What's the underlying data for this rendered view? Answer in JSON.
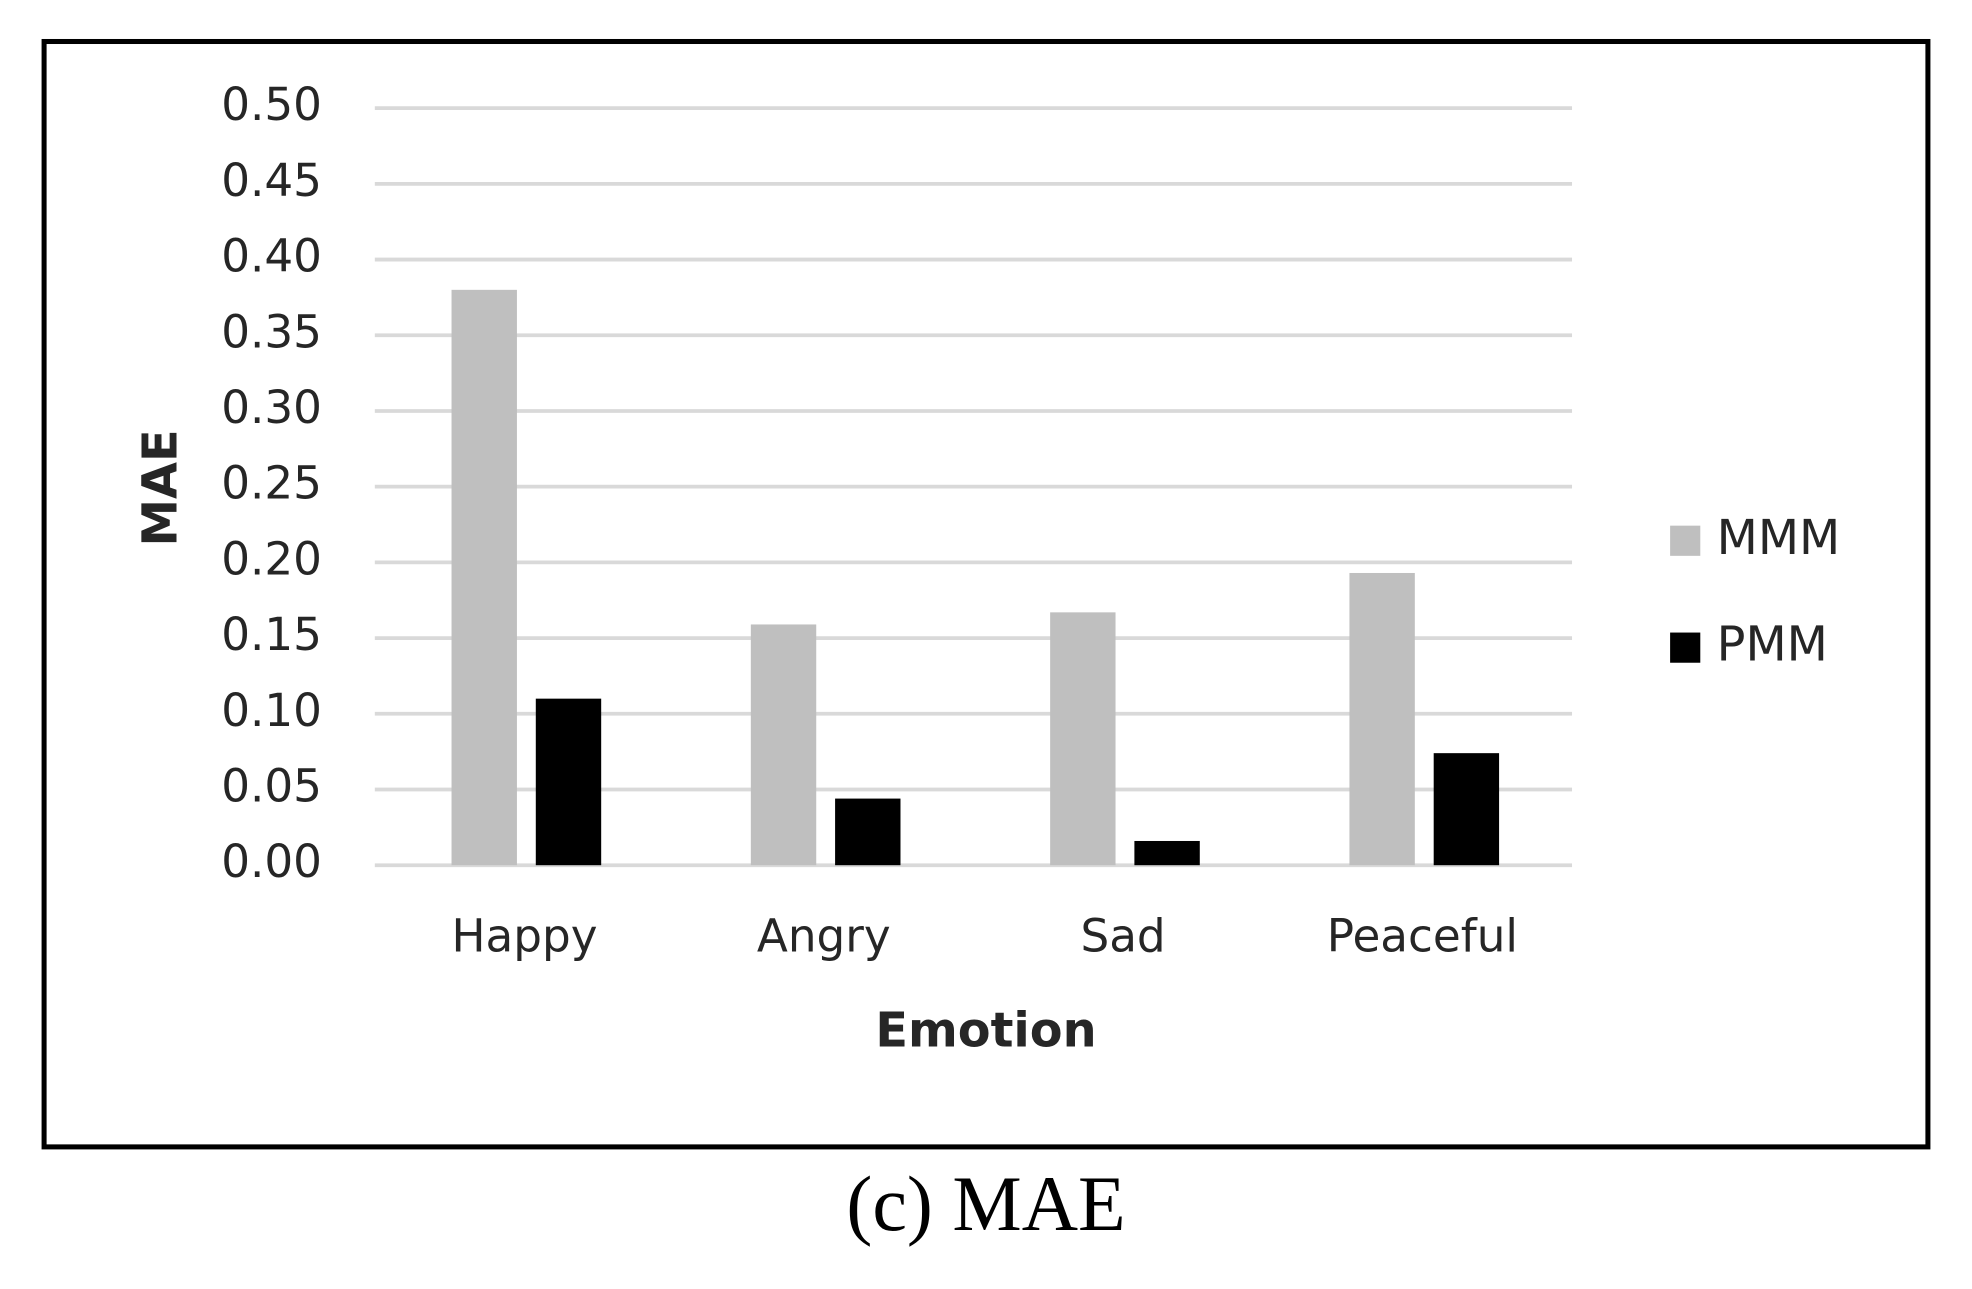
{
  "chart_data": {
    "type": "bar",
    "caption": "(c) MAE",
    "x_label": "Emotion",
    "y_label": "MAE",
    "categories": [
      "Happy",
      "Angry",
      "Sad",
      "Peaceful"
    ],
    "series": [
      {
        "name": "MMM",
        "color": "#bfbfbf",
        "values": [
          0.38,
          0.159,
          0.167,
          0.193
        ]
      },
      {
        "name": "PMM",
        "color": "#000000",
        "values": [
          0.11,
          0.044,
          0.016,
          0.074
        ]
      }
    ],
    "ylim": [
      0,
      0.5
    ],
    "yticks": [
      {
        "value": 0,
        "label": "0.00"
      },
      0.05,
      {
        "value": 0.1,
        "label": "0.10"
      },
      0.15,
      {
        "value": 0.2,
        "label": "0.20"
      },
      0.25,
      {
        "value": 0.3,
        "label": "0.30"
      },
      0.35,
      {
        "value": 0.4,
        "label": "0.40"
      },
      0.45,
      {
        "value": 0.5,
        "label": "0.50"
      }
    ],
    "grid": true,
    "legend": "right"
  }
}
